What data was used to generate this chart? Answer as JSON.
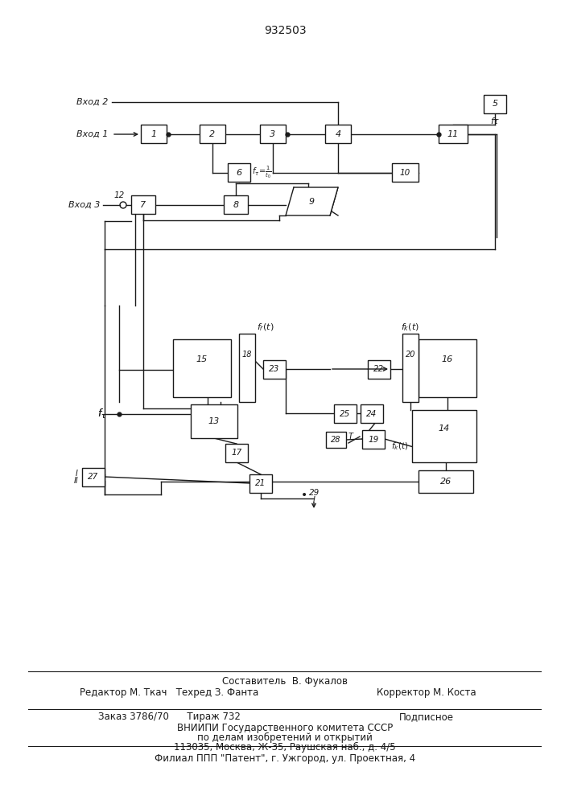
{
  "title": "932503",
  "bg_color": "#ffffff",
  "line_color": "#1a1a1a",
  "footer": {
    "line1": "Составитель  В. Фукалов",
    "line2a": "Редактор М. Ткач   Техред З. Фанта",
    "line2b": "Корректор М. Коста",
    "line3a": "Заказ 3786/70      Тираж 732",
    "line3b": "Подписное",
    "line4": "ВНИИПИ Государственного комитета СССР",
    "line5": "по делам изобретений и открытий",
    "line6": "113035, Москва, Ж-35, Раушская наб., д. 4/5",
    "line7": "Филиал ППП \"Патент\", г. Ужгород, ул. Проектная, 4"
  }
}
